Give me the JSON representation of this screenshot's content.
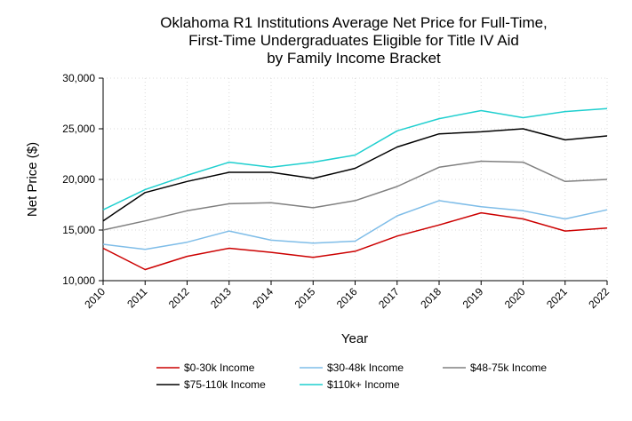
{
  "chart_data": {
    "type": "line",
    "title": [
      "Oklahoma R1 Institutions Average Net Price for Full-Time,",
      "First-Time Undergraduates Eligible for Title IV Aid",
      "by Family Income Bracket"
    ],
    "xlabel": "Year",
    "ylabel": "Net Price ($)",
    "x": [
      "2010",
      "2011",
      "2012",
      "2013",
      "2014",
      "2015",
      "2016",
      "2017",
      "2018",
      "2019",
      "2020",
      "2021",
      "2022"
    ],
    "ylim": [
      10000,
      30000
    ],
    "yticks": [
      10000,
      15000,
      20000,
      25000,
      30000
    ],
    "ytick_labels": [
      "10,000",
      "15,000",
      "20,000",
      "25,000",
      "30,000"
    ],
    "grid": true,
    "legend_position": "bottom",
    "series": [
      {
        "name": "$0-30k Income",
        "color": "#cc0000",
        "values": [
          13200,
          11100,
          12400,
          13200,
          12800,
          12300,
          12900,
          14400,
          15500,
          16700,
          16100,
          14900,
          15200
        ]
      },
      {
        "name": "$30-48k Income",
        "color": "#7fbde8",
        "values": [
          13600,
          13100,
          13800,
          14900,
          14000,
          13700,
          13900,
          16400,
          17900,
          17300,
          16900,
          16100,
          17000
        ]
      },
      {
        "name": "$48-75k Income",
        "color": "#808080",
        "values": [
          15000,
          15900,
          16900,
          17600,
          17700,
          17200,
          17900,
          19300,
          21200,
          21800,
          21700,
          19800,
          20000
        ]
      },
      {
        "name": "$75-110k Income",
        "color": "#000000",
        "values": [
          15900,
          18700,
          19800,
          20700,
          20700,
          20100,
          21100,
          23200,
          24500,
          24700,
          25000,
          23900,
          24300
        ]
      },
      {
        "name": "$110k+ Income",
        "color": "#1fcfcf",
        "values": [
          17000,
          19000,
          20400,
          21700,
          21200,
          21700,
          22400,
          24800,
          26000,
          26800,
          26100,
          26700,
          27000
        ]
      }
    ]
  }
}
